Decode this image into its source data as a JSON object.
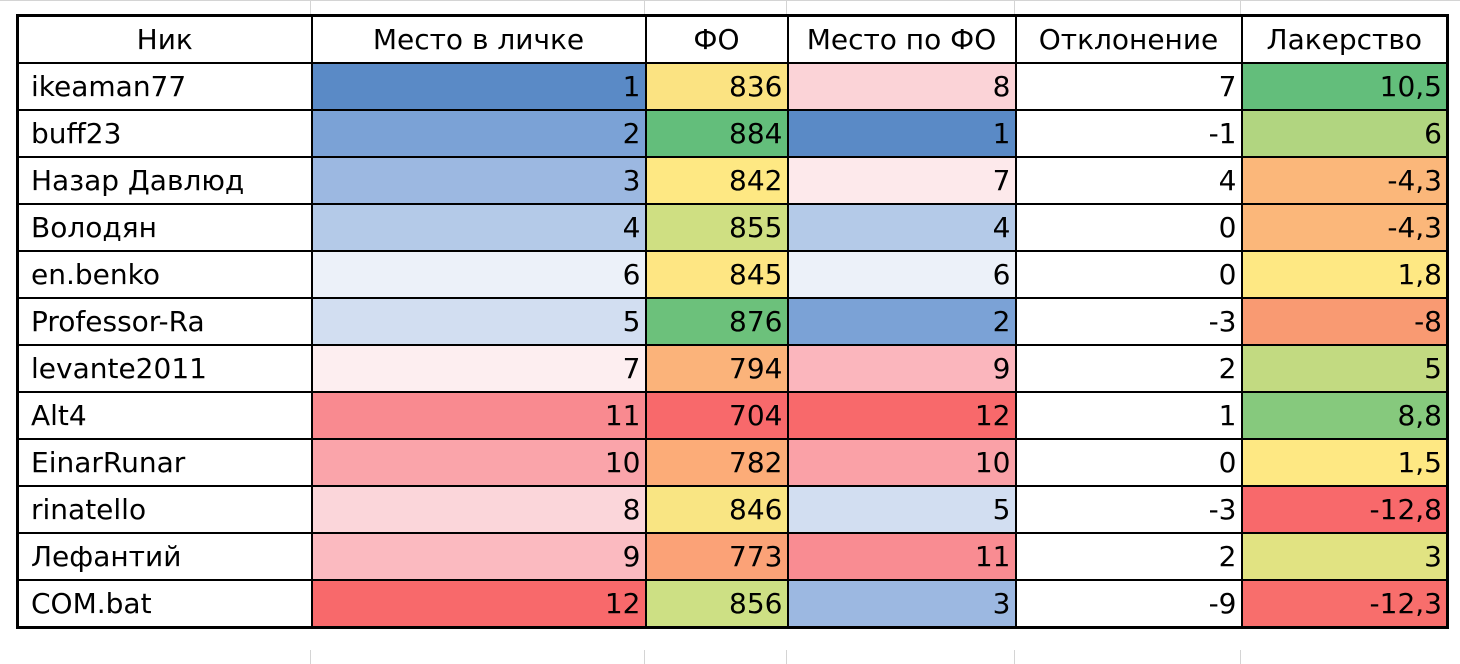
{
  "header": {
    "nick": "Ник",
    "place_personal": "Место в личке",
    "fo": "ФО",
    "place_fo": "Место по ФО",
    "deviation": "Отклонение",
    "luck": "Лакерство"
  },
  "rows": [
    {
      "nick": "ikeaman77",
      "place_personal": "1",
      "fo": "836",
      "place_fo": "8",
      "deviation": "7",
      "luck": "10,5",
      "colors": [
        "#5a8ac6",
        "#fbe382",
        "#fbd3d7",
        "#ffffff",
        "#63be7b"
      ]
    },
    {
      "nick": "buff23",
      "place_personal": "2",
      "fo": "884",
      "place_fo": "1",
      "deviation": "-1",
      "luck": "6",
      "colors": [
        "#7ba2d6",
        "#63be7b",
        "#5a8ac6",
        "#ffffff",
        "#b1d580"
      ]
    },
    {
      "nick": "Назар Давлюд",
      "place_personal": "3",
      "fo": "842",
      "place_fo": "7",
      "deviation": "4",
      "luck": "-4,3",
      "colors": [
        "#9cb8e1",
        "#fee883",
        "#fde9eb",
        "#ffffff",
        "#fbb77a"
      ]
    },
    {
      "nick": "Володян",
      "place_personal": "4",
      "fo": "855",
      "place_fo": "4",
      "deviation": "0",
      "luck": "-4,3",
      "colors": [
        "#b4cae8",
        "#cfdf82",
        "#b4cae8",
        "#ffffff",
        "#fbb77a"
      ]
    },
    {
      "nick": "en.benko",
      "place_personal": "6",
      "fo": "845",
      "place_fo": "6",
      "deviation": "0",
      "luck": "1,8",
      "colors": [
        "#ecf1f9",
        "#fee683",
        "#ecf1f9",
        "#ffffff",
        "#fee883"
      ]
    },
    {
      "nick": "Professor-Ra",
      "place_personal": "5",
      "fo": "876",
      "place_fo": "2",
      "deviation": "-3",
      "luck": "-8",
      "colors": [
        "#d2def1",
        "#6cc17b",
        "#7ba2d6",
        "#ffffff",
        "#f99a72"
      ]
    },
    {
      "nick": "levante2011",
      "place_personal": "7",
      "fo": "794",
      "place_fo": "9",
      "deviation": "2",
      "luck": "5",
      "colors": [
        "#fdeef0",
        "#fbb37a",
        "#fbb6bd",
        "#ffffff",
        "#c2da81"
      ]
    },
    {
      "nick": "Alt4",
      "place_personal": "11",
      "fo": "704",
      "place_fo": "12",
      "deviation": "1",
      "luck": "8,8",
      "colors": [
        "#f98a90",
        "#f8696b",
        "#f8696b",
        "#ffffff",
        "#86c97d"
      ]
    },
    {
      "nick": "EinarRunar",
      "place_personal": "10",
      "fo": "782",
      "place_fo": "10",
      "deviation": "0",
      "luck": "1,5",
      "colors": [
        "#faa4aa",
        "#fcac78",
        "#faa1a7",
        "#ffffff",
        "#fee883"
      ]
    },
    {
      "nick": "rinatello",
      "place_personal": "8",
      "fo": "846",
      "place_fo": "5",
      "deviation": "-3",
      "luck": "-12,8",
      "colors": [
        "#fbd6da",
        "#f9e583",
        "#d2def1",
        "#ffffff",
        "#f8696b"
      ]
    },
    {
      "nick": "Лефантий",
      "place_personal": "9",
      "fo": "773",
      "place_fo": "11",
      "deviation": "2",
      "luck": "3",
      "colors": [
        "#fbbac0",
        "#fba277",
        "#f98c92",
        "#ffffff",
        "#e1e382"
      ]
    },
    {
      "nick": "COM.bat",
      "place_personal": "12",
      "fo": "856",
      "place_fo": "3",
      "deviation": "-9",
      "luck": "-12,3",
      "colors": [
        "#f8696b",
        "#cde084",
        "#9cb8e1",
        "#ffffff",
        "#f86e6c"
      ]
    }
  ]
}
